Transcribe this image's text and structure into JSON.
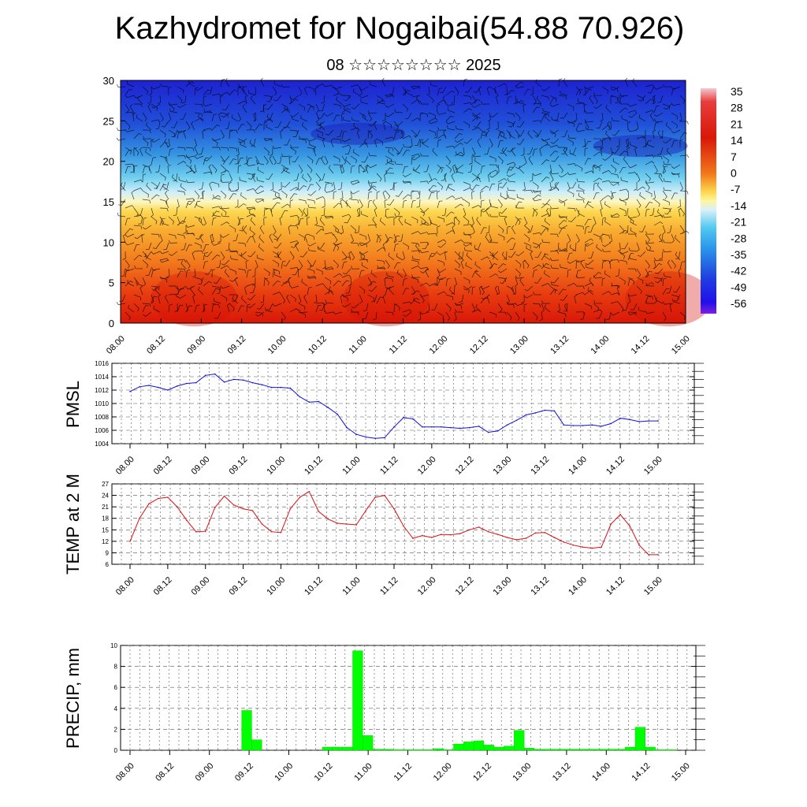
{
  "title": "Kazhydromet for Nogaibai(54.88 70.926)",
  "subtitle": "08 ☆☆☆☆☆☆☆☆ 2025",
  "time_ticks": [
    "08.00",
    "08.12",
    "09.00",
    "09.12",
    "10.00",
    "10.12",
    "11.00",
    "11.12",
    "12.00",
    "12.12",
    "13.00",
    "13.12",
    "14.00",
    "14.12",
    "15.00"
  ],
  "colorbar_labels": [
    "35",
    "28",
    "21",
    "14",
    "7",
    "0",
    "-7",
    "-14",
    "-21",
    "-28",
    "-35",
    "-42",
    "-49",
    "-56"
  ],
  "chart_data": [
    {
      "type": "heatmap",
      "title": "",
      "ylim": [
        0,
        30
      ],
      "yticks": [
        "0",
        "5",
        "10",
        "15",
        "20",
        "25",
        "30"
      ],
      "note_levels": "temperature shading with wind barbs",
      "colorbar_range": [
        -56,
        35
      ]
    },
    {
      "type": "line",
      "ylabel": "PMSL",
      "ylim": [
        1004,
        1016
      ],
      "yticks": [
        "1004",
        "1006",
        "1008",
        "1010",
        "1012",
        "1014",
        "1016"
      ],
      "x": [
        0,
        3,
        6,
        9,
        12,
        15,
        18,
        21,
        24,
        27,
        30,
        33,
        36,
        39,
        42,
        45,
        48,
        51,
        54,
        57,
        60,
        63,
        66,
        69,
        72,
        75,
        78,
        81,
        84,
        87,
        90,
        93,
        96,
        99,
        102,
        105,
        108,
        111,
        114,
        117,
        120,
        123,
        126,
        129,
        132,
        135,
        138,
        141,
        144,
        147,
        150,
        153,
        156,
        159,
        162,
        165,
        168
      ],
      "values": [
        1011.8,
        1012.5,
        1012.7,
        1012.4,
        1012.0,
        1012.6,
        1013.0,
        1013.1,
        1014.2,
        1014.4,
        1013.2,
        1013.6,
        1013.5,
        1013.1,
        1012.8,
        1012.4,
        1012.4,
        1012.3,
        1011.0,
        1010.2,
        1010.3,
        1009.4,
        1008.4,
        1006.4,
        1005.4,
        1005.0,
        1004.8,
        1004.9,
        1006.5,
        1007.9,
        1007.7,
        1006.5,
        1006.5,
        1006.5,
        1006.4,
        1006.3,
        1006.4,
        1006.6,
        1005.7,
        1005.9,
        1006.8,
        1007.5,
        1008.3,
        1008.6,
        1009.0,
        1008.9,
        1006.8,
        1006.7,
        1006.7,
        1006.8,
        1006.6,
        1007.0,
        1007.8,
        1007.6,
        1007.3,
        1007.4,
        1007.4
      ],
      "color": "#1010dd"
    },
    {
      "type": "line",
      "ylabel": "TEMP at 2 M",
      "ylim": [
        6,
        27
      ],
      "yticks": [
        "6",
        "9",
        "12",
        "15",
        "18",
        "21",
        "24",
        "27"
      ],
      "x": [
        0,
        3,
        6,
        9,
        12,
        15,
        18,
        21,
        24,
        27,
        30,
        33,
        36,
        39,
        42,
        45,
        48,
        51,
        54,
        57,
        60,
        63,
        66,
        69,
        72,
        75,
        78,
        81,
        84,
        87,
        90,
        93,
        96,
        99,
        102,
        105,
        108,
        111,
        114,
        117,
        120,
        123,
        126,
        129,
        132,
        135,
        138,
        141,
        144,
        147,
        150,
        153,
        156,
        159,
        162,
        165,
        168
      ],
      "values": [
        12.0,
        18.0,
        21.8,
        23.2,
        23.5,
        21.0,
        17.5,
        14.5,
        14.6,
        20.8,
        23.8,
        21.5,
        20.5,
        20.0,
        16.5,
        14.5,
        14.3,
        20.5,
        23.5,
        25.0,
        19.8,
        17.8,
        16.7,
        16.5,
        16.3,
        20.0,
        23.5,
        24.0,
        20.5,
        16.0,
        12.8,
        13.5,
        13.0,
        13.8,
        13.7,
        14.0,
        15.0,
        15.7,
        14.5,
        13.8,
        13.0,
        12.4,
        12.8,
        14.2,
        14.3,
        13.0,
        11.8,
        11.0,
        10.5,
        10.2,
        10.5,
        16.5,
        19.0,
        16.0,
        11.0,
        8.5,
        8.5
      ],
      "color": "#dd1010"
    },
    {
      "type": "bar",
      "ylabel": "PRECIP, mm",
      "ylim": [
        0,
        10
      ],
      "yticks": [
        "0",
        "2",
        "4",
        "6",
        "8",
        "10"
      ],
      "x": [
        36,
        39,
        60,
        63,
        66,
        69,
        72,
        75,
        78,
        81,
        84,
        87,
        90,
        93,
        96,
        99,
        102,
        105,
        108,
        111,
        114,
        117,
        120,
        123,
        126,
        129,
        132,
        135,
        138,
        141,
        144,
        147,
        150,
        153,
        156,
        159,
        162
      ],
      "values": [
        3.8,
        1.0,
        0.3,
        0.3,
        0.3,
        9.5,
        1.4,
        0.1,
        0.1,
        0.05,
        0.05,
        0.05,
        0.05,
        0.15,
        0.05,
        0.6,
        0.8,
        0.9,
        0.5,
        0.3,
        0.4,
        1.9,
        0.2,
        0.1,
        0.1,
        0.1,
        0.1,
        0.1,
        0.1,
        0.1,
        0.1,
        0.1,
        0.3,
        2.2,
        0.3,
        0.05,
        0.05
      ],
      "color": "#00ff00"
    }
  ]
}
